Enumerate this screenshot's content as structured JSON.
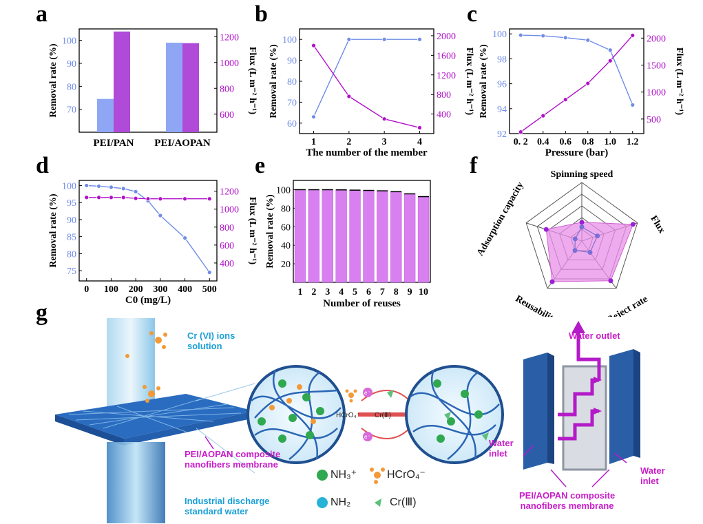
{
  "panel_labels": [
    "a",
    "b",
    "c",
    "d",
    "e",
    "f",
    "g"
  ],
  "colors": {
    "removal": "#6f8ce8",
    "flux": "#b010c8",
    "bar_removal": "#8fa6f5",
    "bar_flux": "#b04ad8",
    "bar_e": "#d880f0",
    "radar_fill": "#e890e8",
    "radar_point": "#9b1fd4",
    "cyan": "#1aa0d8",
    "magenta": "#c81ec8"
  },
  "chart_data": [
    {
      "id": "a",
      "type": "bar",
      "categories": [
        "PEI/PAN",
        "PEI/AOPAN"
      ],
      "series": [
        {
          "name": "Removal rate (%)",
          "axis": "left",
          "values": [
            74.5,
            99.0
          ]
        },
        {
          "name": "Flux (L m⁻² h⁻¹)",
          "axis": "right",
          "values": [
            1240,
            1150
          ]
        }
      ],
      "ylabel": "Removal rate (%)",
      "ylabel2": "Flux (L m⁻² h⁻¹)",
      "ylim": [
        60,
        105
      ],
      "yticks": [
        70,
        80,
        90,
        100
      ],
      "ylim2": [
        460,
        1260
      ],
      "yticks2": [
        600,
        800,
        1000,
        1200
      ]
    },
    {
      "id": "b",
      "type": "line",
      "x": [
        1,
        2,
        3,
        4
      ],
      "xlabel": "The number of the member",
      "series": [
        {
          "name": "Removal rate (%)",
          "axis": "left",
          "values": [
            63,
            100,
            100,
            100
          ]
        },
        {
          "name": "Flux (L m⁻² h⁻¹)",
          "axis": "right",
          "values": [
            1800,
            760,
            300,
            120
          ]
        }
      ],
      "ylabel": "Removal rate (%)",
      "ylabel2": "Flux (L m⁻² h⁻¹)",
      "xlim": [
        0.6,
        4.4
      ],
      "ylim": [
        55,
        105
      ],
      "yticks": [
        60,
        70,
        80,
        90,
        100
      ],
      "ylim2": [
        0,
        2140
      ],
      "yticks2": [
        400,
        800,
        1200,
        1600,
        2000
      ]
    },
    {
      "id": "c",
      "type": "line",
      "x": [
        0.2,
        0.4,
        0.6,
        0.8,
        1.0,
        1.2
      ],
      "xticklabels": [
        "0. 2",
        "0.4",
        "0.6",
        "0.8",
        "1.0",
        "1.2"
      ],
      "xlabel": "Pressure (bar)",
      "series": [
        {
          "name": "Removal rate (%)",
          "axis": "left",
          "values": [
            99.9,
            99.85,
            99.7,
            99.5,
            98.7,
            94.3
          ]
        },
        {
          "name": "Flux (L m⁻² h⁻¹)",
          "axis": "right",
          "values": [
            260,
            560,
            860,
            1160,
            1580,
            2050
          ]
        }
      ],
      "ylabel": "Removal rate (%)",
      "ylabel2": "Flux (L m⁻² h⁻¹)",
      "xlim": [
        0.1,
        1.3
      ],
      "ylim": [
        92,
        100.4
      ],
      "yticks": [
        92,
        94,
        96,
        98,
        100
      ],
      "ylim2": [
        230,
        2170
      ],
      "yticks2": [
        500,
        1000,
        1500,
        2000
      ]
    },
    {
      "id": "d",
      "type": "line",
      "x": [
        0,
        50,
        100,
        150,
        200,
        250,
        300,
        400,
        500
      ],
      "xlabel": "C0 (mg/L)",
      "series": [
        {
          "name": "Removal rate (%)",
          "axis": "left",
          "values": [
            100,
            99.8,
            99.5,
            99.1,
            98.2,
            95.5,
            91.2,
            84.6,
            74.5
          ]
        },
        {
          "name": "Flux (L m⁻² h⁻¹)",
          "axis": "right",
          "values": [
            1130,
            1130,
            1130,
            1130,
            1120,
            1115,
            1115,
            1115,
            1115
          ]
        }
      ],
      "ylabel": "Removal rate (%)",
      "ylabel2": "Flux (L m⁻² h⁻¹)",
      "xlim": [
        -30,
        530
      ],
      "xticks": [
        0,
        100,
        200,
        300,
        400,
        500
      ],
      "ylim": [
        72,
        101.5
      ],
      "yticks": [
        75,
        80,
        85,
        90,
        95,
        100
      ],
      "ylim2": [
        200,
        1320
      ],
      "yticks2": [
        400,
        600,
        800,
        1000,
        1200
      ]
    },
    {
      "id": "e",
      "type": "bar",
      "categories": [
        "1",
        "2",
        "3",
        "4",
        "5",
        "6",
        "7",
        "8",
        "9",
        "10"
      ],
      "values": [
        100,
        100,
        100,
        99.8,
        99.5,
        99.2,
        98.8,
        97.8,
        95.5,
        92.5
      ],
      "xlabel": "Number of reuses",
      "ylabel": "Removal rate (%)",
      "ylim": [
        0,
        110
      ],
      "yticks": [
        20,
        40,
        60,
        80,
        100
      ]
    },
    {
      "id": "f",
      "type": "radar",
      "axes": [
        "Spinning speed",
        "Flux",
        "Reject rate",
        "Reusability",
        "Adsorption capacity"
      ],
      "levels": 5,
      "series": [
        {
          "name": "",
          "values": [
            1.6,
            4.6,
            4.2,
            4.3,
            3.2
          ]
        },
        {
          "name": "",
          "values": [
            1.2,
            1.4,
            1.2,
            1.0,
            0.6
          ]
        }
      ]
    }
  ],
  "schematic": {
    "cr_solution": "Cr (VI) ions\nsolution",
    "membrane_left": "PEI/AOPAN composite\nnanofibers membrane",
    "discharge": "Industrial discharge\nstandard water",
    "legend": {
      "nh3": "NH₃⁺",
      "nh2": "NH₂",
      "hcro4": "HCrO₄⁻",
      "cr3": "Cr(Ⅲ)"
    },
    "hcro4_arrow": "HCrO₄⁻",
    "cr3_arrow": "Cr(Ⅲ)",
    "electron": "e⁻",
    "water_outlet": "Water outlet",
    "water_inlet_left": "Water\ninlet",
    "water_inlet_right": "Water\ninlet",
    "membrane_right": "PEI/AOPAN composite\nnanofibers membrane",
    "nh3_small": "NH3"
  }
}
